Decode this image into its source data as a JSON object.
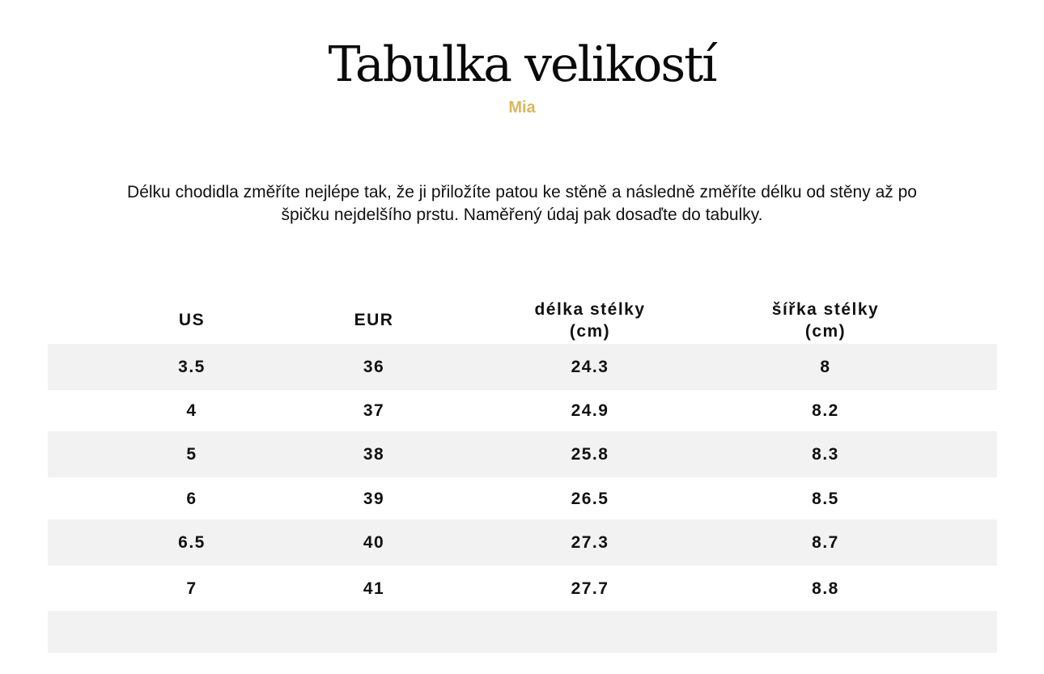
{
  "header": {
    "title": "Tabulka velikostí",
    "subtitle": "Mia"
  },
  "description": "Délku chodidla změříte nejlépe tak, že ji přiložíte patou ke stěně a následně změříte délku od stěny až po špičku nejdelšího prstu. Naměřený údaj pak dosaďte do tabulky.",
  "colors": {
    "accent": "#d9b65e",
    "row_shade": "#f2f2f2"
  },
  "table": {
    "columns": [
      "US",
      "EUR",
      "délka stélky (cm)",
      "šířka stélky (cm)"
    ],
    "rows": [
      [
        "3.5",
        "36",
        "24.3",
        "8"
      ],
      [
        "4",
        "37",
        "24.9",
        "8.2"
      ],
      [
        "5",
        "38",
        "25.8",
        "8.3"
      ],
      [
        "6",
        "39",
        "26.5",
        "8.5"
      ],
      [
        "6.5",
        "40",
        "27.3",
        "8.7"
      ],
      [
        "7",
        "41",
        "27.7",
        "8.8"
      ],
      [
        "",
        "",
        "",
        ""
      ]
    ]
  }
}
